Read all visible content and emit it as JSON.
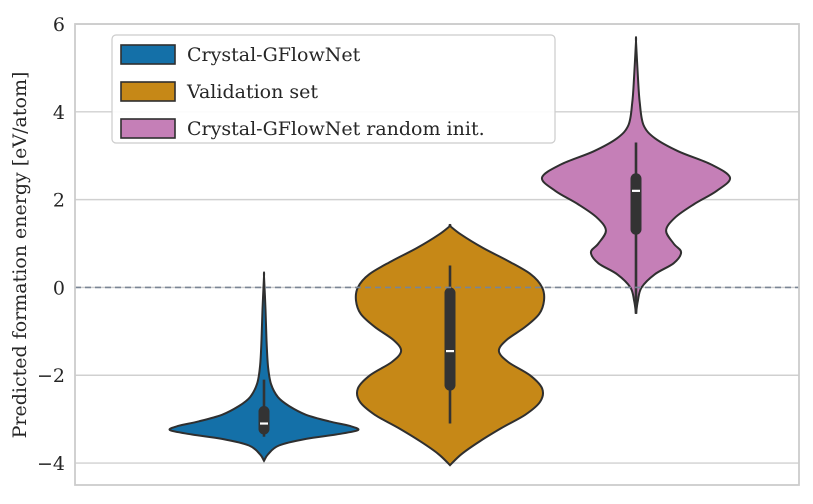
{
  "chart_data": {
    "type": "violin",
    "title": "",
    "xlabel": "",
    "ylabel": "Predicted formation energy [eV/atom]",
    "ylim": [
      -4.5,
      6.0
    ],
    "yticks": [
      -4,
      -2,
      0,
      2,
      4,
      6
    ],
    "ytick_labels": [
      "−4",
      "−2",
      "0",
      "2",
      "4",
      "6"
    ],
    "grid": true,
    "legend_position": "top-left",
    "reference_line": {
      "y": 0,
      "style": "dashed",
      "color": "#7a8595"
    },
    "series": [
      {
        "name": "Crystal-GFlowNet",
        "color": "#1470a8",
        "range": [
          -3.95,
          0.25
        ],
        "quartiles": [
          -3.35,
          -3.1,
          -2.7
        ],
        "whiskers": [
          -3.4,
          -2.1
        ],
        "profile": [
          [
            -3.95,
            0.0
          ],
          [
            -3.8,
            0.04
          ],
          [
            -3.6,
            0.15
          ],
          [
            -3.45,
            0.42
          ],
          [
            -3.35,
            0.72
          ],
          [
            -3.25,
            0.94
          ],
          [
            -3.15,
            0.85
          ],
          [
            -3.05,
            0.65
          ],
          [
            -2.9,
            0.42
          ],
          [
            -2.7,
            0.25
          ],
          [
            -2.5,
            0.14
          ],
          [
            -2.2,
            0.07
          ],
          [
            -1.8,
            0.04
          ],
          [
            -1.2,
            0.025
          ],
          [
            -0.5,
            0.015
          ],
          [
            0.25,
            0.0
          ]
        ]
      },
      {
        "name": "Validation set",
        "color": "#c68817",
        "range": [
          -4.05,
          1.4
        ],
        "quartiles": [
          -2.35,
          -1.45,
          0.0
        ],
        "whiskers": [
          -3.1,
          0.5
        ],
        "profile": [
          [
            -4.05,
            0.0
          ],
          [
            -3.8,
            0.12
          ],
          [
            -3.5,
            0.32
          ],
          [
            -3.2,
            0.55
          ],
          [
            -2.9,
            0.8
          ],
          [
            -2.6,
            0.96
          ],
          [
            -2.3,
            0.98
          ],
          [
            -2.0,
            0.85
          ],
          [
            -1.7,
            0.62
          ],
          [
            -1.45,
            0.52
          ],
          [
            -1.2,
            0.6
          ],
          [
            -0.9,
            0.8
          ],
          [
            -0.6,
            0.95
          ],
          [
            -0.3,
            1.0
          ],
          [
            0.0,
            0.98
          ],
          [
            0.3,
            0.86
          ],
          [
            0.6,
            0.62
          ],
          [
            0.9,
            0.35
          ],
          [
            1.2,
            0.12
          ],
          [
            1.4,
            0.0
          ]
        ]
      },
      {
        "name": "Crystal-GFlowNet random init.",
        "color": "#c57fb7",
        "range": [
          -0.6,
          5.6
        ],
        "quartiles": [
          1.2,
          2.2,
          2.6
        ],
        "whiskers": [
          -0.6,
          3.3
        ],
        "profile": [
          [
            -0.6,
            0.0
          ],
          [
            -0.3,
            0.02
          ],
          [
            0.0,
            0.06
          ],
          [
            0.3,
            0.2
          ],
          [
            0.55,
            0.4
          ],
          [
            0.8,
            0.48
          ],
          [
            1.0,
            0.4
          ],
          [
            1.3,
            0.32
          ],
          [
            1.6,
            0.42
          ],
          [
            1.9,
            0.62
          ],
          [
            2.2,
            0.86
          ],
          [
            2.5,
            1.0
          ],
          [
            2.8,
            0.8
          ],
          [
            3.1,
            0.45
          ],
          [
            3.4,
            0.2
          ],
          [
            3.7,
            0.08
          ],
          [
            4.2,
            0.04
          ],
          [
            4.8,
            0.02
          ],
          [
            5.6,
            0.0
          ]
        ]
      }
    ]
  }
}
